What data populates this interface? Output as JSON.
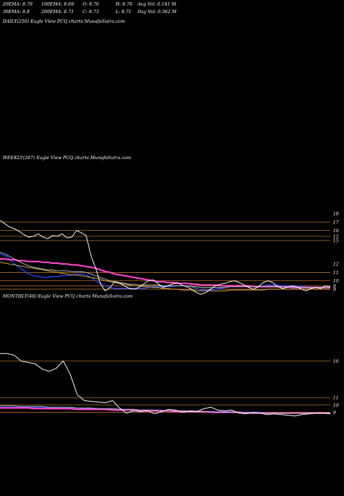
{
  "header": {
    "row1": [
      {
        "text": "20EMA: 8.79"
      },
      {
        "text": "100EMA: 8.69"
      },
      {
        "text": "O: 8.76"
      },
      {
        "text": "H: 8.76"
      },
      {
        "text": "Avg Vol: 0.141 M"
      }
    ],
    "row2": [
      {
        "text": "30EMA: 8.8"
      },
      {
        "text": "200EMA: 8.71"
      },
      {
        "text": "C: 8.73"
      },
      {
        "text": "L: 8.71"
      },
      {
        "text": "Day Vol: 0.362  M"
      }
    ]
  },
  "panels": {
    "daily": {
      "label": "DAILY(250) Eagle  View  PCQ charts MunafaSutra.com"
    },
    "weekly": {
      "label": "WEEKLY(287) Eagle  View  PCQ charts MunafaSutra.com"
    },
    "monthly": {
      "label": "MONTHLY(48) Eagle  View  PCQ charts MunafaSutra.com"
    }
  },
  "chart_data": [
    {
      "type": "line",
      "name": "weekly",
      "ylim": [
        8,
        18.5
      ],
      "y_ticks": [
        "18",
        "17",
        "16",
        "15",
        "15",
        "12",
        "11",
        "10",
        "9",
        "9"
      ],
      "y_tick_values": [
        18,
        17,
        16,
        15.3,
        14.8,
        12,
        11,
        10,
        9.4,
        9.0
      ],
      "horizontal_levels": [
        17,
        16,
        15.3,
        14.8,
        11,
        10,
        9.4,
        9.0
      ],
      "series": [
        {
          "role": "price",
          "color": "#ffffff",
          "values": [
            17.2,
            16.8,
            16.4,
            16.2,
            15.9,
            15.5,
            15.2,
            15.3,
            15.6,
            15.2,
            15.0,
            15.4,
            15.3,
            15.6,
            15.1,
            15.2,
            16.0,
            15.7,
            15.4,
            13.0,
            11.5,
            9.6,
            8.8,
            9.2,
            9.9,
            9.7,
            9.4,
            9.1,
            9.0,
            9.2,
            9.6,
            10.0,
            10.1,
            9.7,
            9.2,
            9.4,
            9.6,
            9.8,
            9.5,
            9.3,
            9.0,
            8.6,
            8.4,
            8.6,
            9.0,
            9.4,
            9.6,
            9.7,
            9.9,
            10.0,
            9.8,
            9.5,
            9.2,
            9.0,
            9.3,
            9.8,
            10.0,
            9.8,
            9.3,
            9.1,
            9.2,
            9.4,
            9.3,
            9.0,
            8.8,
            9.1,
            9.2,
            9.1,
            9.4,
            9.3
          ]
        },
        {
          "role": "ema-fast",
          "color": "#2244ff",
          "values": [
            13.2,
            13.0,
            12.6,
            12.0,
            11.6,
            11.2,
            10.8,
            10.6,
            10.5,
            10.4,
            10.4,
            10.5,
            10.5,
            10.6,
            10.6,
            10.7,
            10.8,
            10.8,
            10.7,
            10.4,
            10.0,
            9.7,
            9.4,
            9.2,
            9.1,
            9.1,
            9.1,
            9.1,
            9.1,
            9.1,
            9.1,
            9.2,
            9.3,
            9.3,
            9.3,
            9.3,
            9.3,
            9.4,
            9.4,
            9.4,
            9.3,
            9.1,
            8.9,
            8.9,
            8.9,
            9.0,
            9.1,
            9.2,
            9.3,
            9.4,
            9.4,
            9.4,
            9.4,
            9.3,
            9.3,
            9.4,
            9.5,
            9.5,
            9.5,
            9.4,
            9.4,
            9.4,
            9.4,
            9.3,
            9.3,
            9.2,
            9.2,
            9.2,
            9.2,
            9.2
          ]
        },
        {
          "role": "ema-mid",
          "color": "#ff44cc",
          "values": [
            12.6,
            12.6,
            12.5,
            12.5,
            12.4,
            12.4,
            12.3,
            12.3,
            12.3,
            12.2,
            12.2,
            12.1,
            12.1,
            12.0,
            12.0,
            11.9,
            11.9,
            11.8,
            11.7,
            11.6,
            11.5,
            11.3,
            11.1,
            11.0,
            10.8,
            10.7,
            10.6,
            10.5,
            10.4,
            10.3,
            10.2,
            10.1,
            10.0,
            9.9,
            9.9,
            9.8,
            9.8,
            9.7,
            9.7,
            9.7,
            9.6,
            9.6,
            9.5,
            9.5,
            9.5,
            9.5,
            9.4,
            9.4,
            9.4,
            9.4,
            9.4,
            9.4,
            9.4,
            9.3,
            9.3,
            9.3,
            9.3,
            9.3,
            9.3,
            9.3,
            9.3,
            9.2,
            9.2,
            9.2,
            9.2,
            9.2,
            9.2,
            9.2,
            9.2,
            9.2
          ]
        },
        {
          "role": "ema-slow",
          "color": "#bbbbbb",
          "values": [
            13.4,
            13.2,
            12.9,
            12.6,
            12.3,
            12.0,
            11.8,
            11.6,
            11.5,
            11.4,
            11.3,
            11.3,
            11.2,
            11.2,
            11.2,
            11.1,
            11.1,
            11.1,
            11.0,
            10.8,
            10.6,
            10.4,
            10.2,
            10.0,
            9.9,
            9.8,
            9.7,
            9.6,
            9.6,
            9.5,
            9.5,
            9.5,
            9.5,
            9.5,
            9.4,
            9.4,
            9.4,
            9.4,
            9.4,
            9.4,
            9.3,
            9.3,
            9.2,
            9.2,
            9.2,
            9.2,
            9.2,
            9.2,
            9.3,
            9.3,
            9.3,
            9.3,
            9.3,
            9.3,
            9.3,
            9.3,
            9.3,
            9.3,
            9.3,
            9.3,
            9.3,
            9.3,
            9.3,
            9.2,
            9.2,
            9.2,
            9.2,
            9.2,
            9.2,
            9.2
          ]
        },
        {
          "role": "ema-extra",
          "color": "#ddaa44",
          "values": [
            12.2,
            12.1,
            12.0,
            11.9,
            11.8,
            11.7,
            11.6,
            11.5,
            11.4,
            11.3,
            11.2,
            11.1,
            11.0,
            10.9,
            10.8,
            10.7,
            10.7,
            10.6,
            10.5,
            10.4,
            10.3,
            10.2,
            10.0,
            9.9,
            9.8,
            9.7,
            9.6,
            9.5,
            9.4,
            9.4,
            9.3,
            9.3,
            9.2,
            9.2,
            9.1,
            9.1,
            9.0,
            9.0,
            8.9,
            8.9,
            8.9,
            8.8,
            8.8,
            8.8,
            8.8,
            8.8,
            8.8,
            8.8,
            8.9,
            8.9,
            8.9,
            8.9,
            8.9,
            8.9,
            8.9,
            8.9,
            9.0,
            9.0,
            9.0,
            9.0,
            9.0,
            9.0,
            9.0,
            9.0,
            9.0,
            9.0,
            9.0,
            9.0,
            9.0,
            9.0
          ]
        }
      ]
    },
    {
      "type": "line",
      "name": "monthly",
      "ylim": [
        8.3,
        17.5
      ],
      "y_ticks": [
        "16",
        "11",
        "10",
        "9"
      ],
      "y_tick_values": [
        16,
        11,
        10,
        9
      ],
      "horizontal_levels": [
        16,
        11,
        10,
        9
      ],
      "series": [
        {
          "role": "price",
          "color": "#ffffff",
          "values": [
            17.0,
            17.0,
            16.8,
            16.0,
            15.8,
            15.6,
            14.9,
            14.6,
            15.0,
            16.0,
            14.2,
            11.4,
            10.6,
            10.5,
            10.4,
            10.3,
            10.6,
            9.6,
            8.9,
            9.2,
            9.1,
            9.2,
            8.8,
            9.1,
            9.4,
            9.3,
            9.0,
            9.2,
            9.1,
            9.5,
            9.7,
            9.3,
            9.2,
            9.3,
            8.9,
            8.8,
            9.0,
            8.9,
            8.7,
            8.8,
            8.7,
            8.6,
            8.5,
            8.7,
            8.8,
            8.9,
            8.9,
            8.8
          ]
        },
        {
          "role": "ema-fast",
          "color": "#2244ff",
          "values": [
            9.7,
            9.7,
            9.7,
            9.7,
            9.7,
            9.7,
            9.7,
            9.6,
            9.6,
            9.6,
            9.6,
            9.6,
            9.5,
            9.5,
            9.5,
            9.5,
            9.5,
            9.4,
            9.4,
            9.4,
            9.3,
            9.3,
            9.3,
            9.3,
            9.2,
            9.2,
            9.2,
            9.2,
            9.2,
            9.1,
            9.1,
            9.1,
            9.1,
            9.1,
            9.0,
            9.0,
            9.0,
            9.0,
            8.9,
            8.9,
            8.9,
            8.9,
            8.9,
            8.9,
            8.9,
            8.9,
            8.9,
            8.9
          ]
        },
        {
          "role": "ema-mid",
          "color": "#ff44cc",
          "values": [
            9.6,
            9.6,
            9.6,
            9.6,
            9.6,
            9.5,
            9.5,
            9.5,
            9.5,
            9.5,
            9.5,
            9.4,
            9.4,
            9.4,
            9.4,
            9.4,
            9.3,
            9.3,
            9.3,
            9.3,
            9.2,
            9.2,
            9.2,
            9.2,
            9.2,
            9.1,
            9.1,
            9.1,
            9.1,
            9.1,
            9.0,
            9.0,
            9.0,
            9.0,
            9.0,
            8.9,
            8.9,
            8.9,
            8.9,
            8.9,
            8.9,
            8.9,
            8.9,
            8.9,
            8.9,
            8.9,
            8.9,
            8.9
          ]
        },
        {
          "role": "ema-slow",
          "color": "#bbbbbb",
          "values": [
            9.9,
            9.9,
            9.9,
            9.8,
            9.8,
            9.8,
            9.8,
            9.7,
            9.7,
            9.7,
            9.7,
            9.6,
            9.6,
            9.6,
            9.5,
            9.5,
            9.5,
            9.4,
            9.4,
            9.4,
            9.3,
            9.3,
            9.3,
            9.2,
            9.2,
            9.2,
            9.2,
            9.1,
            9.1,
            9.1,
            9.1,
            9.0,
            9.0,
            9.0,
            9.0,
            9.0,
            8.9,
            8.9,
            8.9,
            8.9,
            8.9,
            8.9,
            8.9,
            8.9,
            8.9,
            8.9,
            8.9,
            8.9
          ]
        }
      ]
    }
  ]
}
